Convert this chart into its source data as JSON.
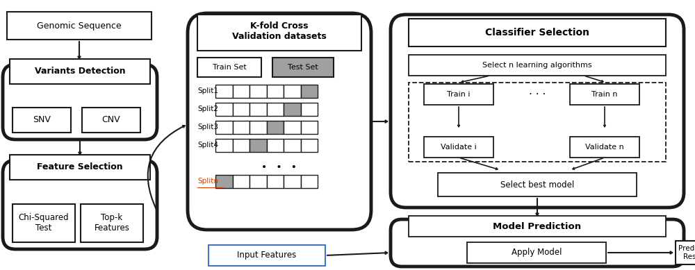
{
  "bg_color": "#ffffff",
  "line_color": "#1a1a1a",
  "gray_fill": "#a0a0a0",
  "fig_width": 10.0,
  "fig_height": 3.89,
  "splits": [
    {
      "label": "Split1",
      "gray_idx": 5
    },
    {
      "label": "Split2",
      "gray_idx": 4
    },
    {
      "label": "Split3",
      "gray_idx": 3
    },
    {
      "label": "Split4",
      "gray_idx": 2
    }
  ],
  "splitn_gray_idx": 0,
  "num_cells": 6
}
